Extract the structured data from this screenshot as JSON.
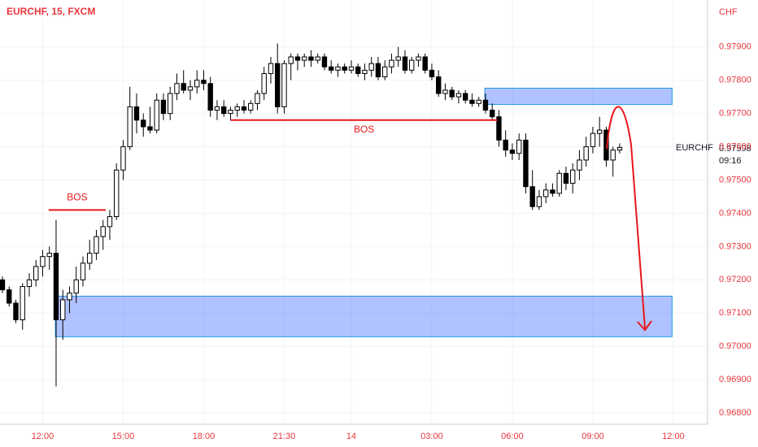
{
  "chart_data": {
    "type": "candlestick",
    "title": "EURCHF, 15, FXCM",
    "currency": "CHF",
    "symbol": "EURCHF",
    "last_price": 0.97598,
    "countdown": "09:16",
    "up_color": "#ffffff",
    "down_color": "#000000",
    "grid": true,
    "xlim": [
      -0.36,
      105.1
    ],
    "xticks": [
      {
        "value": 6,
        "label": "12:00"
      },
      {
        "value": 18,
        "label": "15:00"
      },
      {
        "value": 30,
        "label": "18:00"
      },
      {
        "value": 42,
        "label": "21:30"
      },
      {
        "value": 52,
        "label": "14"
      },
      {
        "value": 64,
        "label": "03:00"
      },
      {
        "value": 76,
        "label": "06:00"
      },
      {
        "value": 88,
        "label": "09:00"
      },
      {
        "value": 100,
        "label": "12:00"
      }
    ],
    "ylim": [
      0.96766,
      0.98041
    ],
    "yticks": [
      {
        "value": 0.968,
        "label": "0.96800"
      },
      {
        "value": 0.969,
        "label": "0.96900"
      },
      {
        "value": 0.97,
        "label": "0.97000"
      },
      {
        "value": 0.971,
        "label": "0.97100"
      },
      {
        "value": 0.972,
        "label": "0.97200"
      },
      {
        "value": 0.973,
        "label": "0.97300"
      },
      {
        "value": 0.974,
        "label": "0.97400"
      },
      {
        "value": 0.975,
        "label": "0.97500"
      },
      {
        "value": 0.976,
        "label": "0.97600"
      },
      {
        "value": 0.977,
        "label": "0.97700"
      },
      {
        "value": 0.978,
        "label": "0.97800"
      },
      {
        "value": 0.979,
        "label": "0.97900"
      }
    ],
    "zones": [
      {
        "x": [
          71.9,
          99.8
        ],
        "y": [
          0.97727,
          0.97776
        ]
      },
      {
        "x": [
          7.9,
          99.8
        ],
        "y": [
          0.97029,
          0.97151
        ]
      }
    ],
    "levels": [
      {
        "label": "BOS",
        "x": [
          6.9,
          15.4
        ],
        "value": 0.9741
      },
      {
        "label": "BOS",
        "x": [
          34,
          73.8
        ],
        "value": 0.9768
      }
    ],
    "ohlc": [
      [
        0.972,
        0.9721,
        0.9716,
        0.9717
      ],
      [
        0.9717,
        0.9718,
        0.9712,
        0.9713
      ],
      [
        0.9713,
        0.9714,
        0.9707,
        0.9708
      ],
      [
        0.9708,
        0.9719,
        0.9705,
        0.9718
      ],
      [
        0.9718,
        0.9722,
        0.9715,
        0.972
      ],
      [
        0.972,
        0.9726,
        0.9718,
        0.9724
      ],
      [
        0.9724,
        0.9729,
        0.9721,
        0.9727
      ],
      [
        0.9727,
        0.973,
        0.9723,
        0.9728
      ],
      [
        0.9728,
        0.9738,
        0.9688,
        0.9708
      ],
      [
        0.9708,
        0.9717,
        0.9702,
        0.9714
      ],
      [
        0.9714,
        0.9718,
        0.971,
        0.9716
      ],
      [
        0.9716,
        0.9724,
        0.9713,
        0.972
      ],
      [
        0.972,
        0.9727,
        0.9718,
        0.9725
      ],
      [
        0.9725,
        0.9732,
        0.9723,
        0.9728
      ],
      [
        0.9728,
        0.9735,
        0.9726,
        0.9733
      ],
      [
        0.9733,
        0.9738,
        0.9729,
        0.9736
      ],
      [
        0.9736,
        0.9741,
        0.9732,
        0.9739
      ],
      [
        0.9739,
        0.9755,
        0.9738,
        0.9753
      ],
      [
        0.9753,
        0.9762,
        0.975,
        0.976
      ],
      [
        0.976,
        0.9778,
        0.9759,
        0.9772
      ],
      [
        0.9772,
        0.9776,
        0.9764,
        0.9768
      ],
      [
        0.9768,
        0.977,
        0.9763,
        0.9766
      ],
      [
        0.9766,
        0.9772,
        0.9764,
        0.9765
      ],
      [
        0.9765,
        0.9776,
        0.9764,
        0.9774
      ],
      [
        0.9774,
        0.9776,
        0.9768,
        0.977
      ],
      [
        0.977,
        0.9778,
        0.9768,
        0.9776
      ],
      [
        0.9776,
        0.9782,
        0.9774,
        0.9779
      ],
      [
        0.9779,
        0.9783,
        0.9776,
        0.9777
      ],
      [
        0.9777,
        0.978,
        0.9774,
        0.9778
      ],
      [
        0.9778,
        0.9783,
        0.9776,
        0.978
      ],
      [
        0.978,
        0.9783,
        0.9777,
        0.9779
      ],
      [
        0.9779,
        0.9781,
        0.9769,
        0.9771
      ],
      [
        0.9771,
        0.9774,
        0.9768,
        0.9772
      ],
      [
        0.9772,
        0.9774,
        0.9769,
        0.977
      ],
      [
        0.977,
        0.9772,
        0.9768,
        0.9771
      ],
      [
        0.9771,
        0.9773,
        0.9769,
        0.9772
      ],
      [
        0.9772,
        0.9774,
        0.977,
        0.9771
      ],
      [
        0.9771,
        0.9774,
        0.977,
        0.9773
      ],
      [
        0.9773,
        0.9777,
        0.9771,
        0.9776
      ],
      [
        0.9776,
        0.9784,
        0.9774,
        0.9782
      ],
      [
        0.9782,
        0.9787,
        0.9779,
        0.9785
      ],
      [
        0.9785,
        0.9791,
        0.977,
        0.9772
      ],
      [
        0.9772,
        0.9786,
        0.977,
        0.9785
      ],
      [
        0.9785,
        0.9788,
        0.978,
        0.9787
      ],
      [
        0.9787,
        0.9788,
        0.9783,
        0.9786
      ],
      [
        0.9786,
        0.9788,
        0.9784,
        0.9787
      ],
      [
        0.9787,
        0.9789,
        0.9784,
        0.9786
      ],
      [
        0.9786,
        0.9788,
        0.9785,
        0.9787
      ],
      [
        0.9787,
        0.9788,
        0.9783,
        0.9784
      ],
      [
        0.9784,
        0.9786,
        0.9782,
        0.9783
      ],
      [
        0.9783,
        0.9785,
        0.9781,
        0.9784
      ],
      [
        0.9784,
        0.9785,
        0.9782,
        0.9783
      ],
      [
        0.9783,
        0.9786,
        0.9782,
        0.9784
      ],
      [
        0.9784,
        0.9785,
        0.9781,
        0.9782
      ],
      [
        0.9782,
        0.9785,
        0.978,
        0.9783
      ],
      [
        0.9783,
        0.9787,
        0.9781,
        0.9785
      ],
      [
        0.9785,
        0.9787,
        0.978,
        0.9781
      ],
      [
        0.9781,
        0.9786,
        0.978,
        0.9784
      ],
      [
        0.9784,
        0.9788,
        0.9782,
        0.9786
      ],
      [
        0.9786,
        0.979,
        0.9784,
        0.9787
      ],
      [
        0.9787,
        0.9789,
        0.9782,
        0.9783
      ],
      [
        0.9783,
        0.9787,
        0.9782,
        0.9786
      ],
      [
        0.9786,
        0.9788,
        0.9784,
        0.9787
      ],
      [
        0.9787,
        0.9788,
        0.9782,
        0.9783
      ],
      [
        0.9783,
        0.9785,
        0.978,
        0.9781
      ],
      [
        0.9781,
        0.9783,
        0.9775,
        0.9776
      ],
      [
        0.9776,
        0.9779,
        0.9774,
        0.9777
      ],
      [
        0.9777,
        0.9778,
        0.9774,
        0.9775
      ],
      [
        0.9775,
        0.9777,
        0.9773,
        0.9776
      ],
      [
        0.9776,
        0.9777,
        0.9773,
        0.9774
      ],
      [
        0.9774,
        0.9776,
        0.9772,
        0.9773
      ],
      [
        0.9773,
        0.9775,
        0.9772,
        0.9774
      ],
      [
        0.9774,
        0.9776,
        0.977,
        0.9771
      ],
      [
        0.9771,
        0.9773,
        0.9768,
        0.9769
      ],
      [
        0.9769,
        0.9771,
        0.976,
        0.9762
      ],
      [
        0.9762,
        0.9765,
        0.9757,
        0.9759
      ],
      [
        0.9759,
        0.9761,
        0.9756,
        0.9758
      ],
      [
        0.9758,
        0.9764,
        0.9756,
        0.9762
      ],
      [
        0.9762,
        0.9764,
        0.9746,
        0.9748
      ],
      [
        0.9748,
        0.9753,
        0.9741,
        0.9742
      ],
      [
        0.9742,
        0.9747,
        0.9741,
        0.9745
      ],
      [
        0.9745,
        0.9749,
        0.9743,
        0.9747
      ],
      [
        0.9747,
        0.9749,
        0.9745,
        0.9746
      ],
      [
        0.9746,
        0.9753,
        0.9745,
        0.9752
      ],
      [
        0.9752,
        0.9754,
        0.9747,
        0.9749
      ],
      [
        0.9749,
        0.9755,
        0.9746,
        0.9753
      ],
      [
        0.9753,
        0.9759,
        0.975,
        0.9756
      ],
      [
        0.9756,
        0.9763,
        0.9754,
        0.976
      ],
      [
        0.976,
        0.9766,
        0.9758,
        0.9764
      ],
      [
        0.9764,
        0.9769,
        0.976,
        0.9765
      ],
      [
        0.9765,
        0.9766,
        0.9754,
        0.9756
      ],
      [
        0.9756,
        0.976,
        0.9751,
        0.9759
      ],
      [
        0.9759,
        0.9761,
        0.9758,
        0.97598
      ]
    ]
  }
}
